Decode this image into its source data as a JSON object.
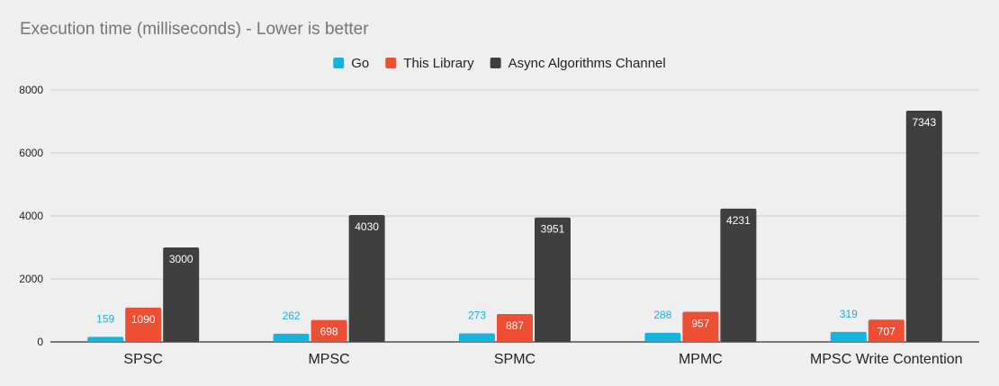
{
  "chart_data": {
    "type": "bar",
    "title": "Execution time (milliseconds) - Lower is better",
    "xlabel": "",
    "ylabel": "",
    "categories": [
      "SPSC",
      "MPSC",
      "SPMC",
      "MPMC",
      "MPSC Write Contention"
    ],
    "series": [
      {
        "name": "Go",
        "values": [
          159,
          262,
          273,
          288,
          319
        ],
        "color": "#14b4dc",
        "label_color": "#14b4dc",
        "label_position": "above"
      },
      {
        "name": "This Library",
        "values": [
          1090,
          698,
          887,
          957,
          707
        ],
        "color": "#ee4e34",
        "label_color": "#ffffff",
        "label_position": "inside"
      },
      {
        "name": "Async Algorithms Channel",
        "values": [
          3000,
          4030,
          3951,
          4231,
          7343
        ],
        "color": "#3f3f3f",
        "label_color": "#ffffff",
        "label_position": "inside"
      }
    ],
    "y_ticks": [
      0,
      2000,
      4000,
      6000,
      8000
    ],
    "ylim": [
      0,
      8000
    ],
    "grid": true,
    "legend_position": "top-center"
  }
}
